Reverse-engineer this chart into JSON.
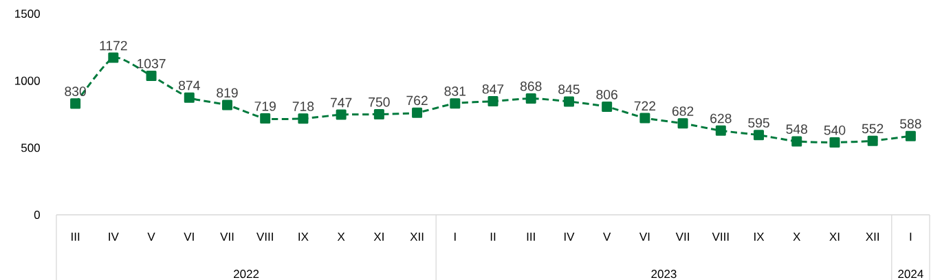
{
  "chart_data": {
    "type": "line",
    "categories": [
      "III",
      "IV",
      "V",
      "VI",
      "VII",
      "VIII",
      "IX",
      "X",
      "XI",
      "XII",
      "I",
      "II",
      "III",
      "IV",
      "V",
      "VI",
      "VII",
      "VIII",
      "IX",
      "X",
      "XI",
      "XII",
      "I"
    ],
    "values": [
      830,
      1172,
      1037,
      874,
      819,
      719,
      718,
      747,
      750,
      762,
      831,
      847,
      868,
      845,
      806,
      722,
      682,
      628,
      595,
      548,
      540,
      552,
      588
    ],
    "color": "#007a3d",
    "marker": "square",
    "line_style": "dashed",
    "data_labels": true,
    "ylim": [
      0,
      1500
    ],
    "yticks": [
      0,
      500,
      1000,
      1500
    ],
    "annotations": [
      "2022",
      "2023",
      "2024"
    ]
  }
}
